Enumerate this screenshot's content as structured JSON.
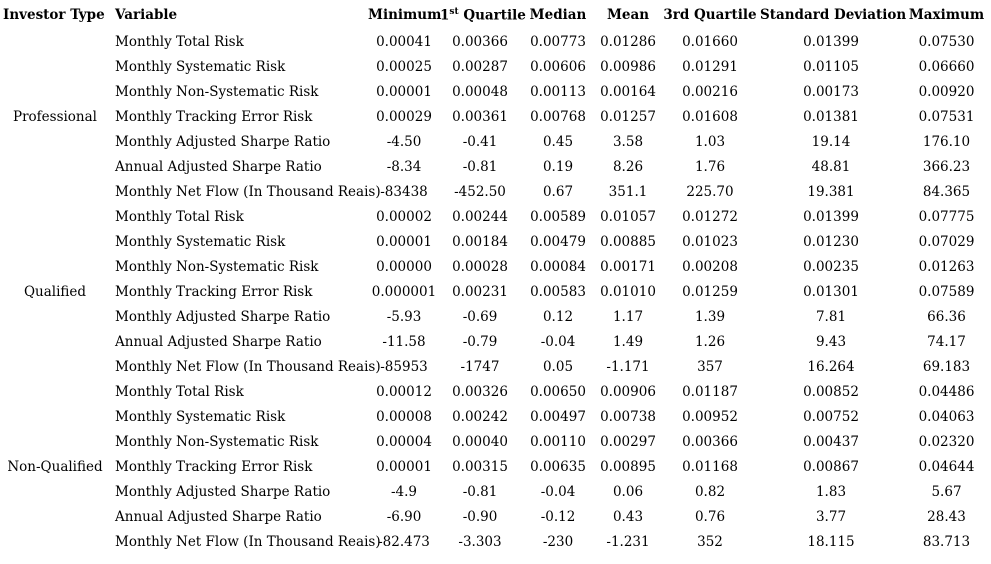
{
  "table": {
    "headers": {
      "investor_type": "Investor Type",
      "variable": "Variable",
      "minimum": "Minimum",
      "q1_base": "1",
      "q1_sup": "st",
      "q1_rest": " Quartile",
      "median": "Median",
      "mean": "Mean",
      "q3": "3rd Quartile",
      "std_dev": "Standard Deviation",
      "maximum": "Maximum"
    },
    "groups": [
      {
        "investor_type": "Professional",
        "rows": [
          {
            "variable": "Monthly Total Risk",
            "values": [
              "0.00041",
              "0.00366",
              "0.00773",
              "0.01286",
              "0.01660",
              "0.01399",
              "0.07530"
            ]
          },
          {
            "variable": "Monthly Systematic Risk",
            "values": [
              "0.00025",
              "0.00287",
              "0.00606",
              "0.00986",
              "0.01291",
              "0.01105",
              "0.06660"
            ]
          },
          {
            "variable": "Monthly Non-Systematic Risk",
            "values": [
              "0.00001",
              "0.00048",
              "0.00113",
              "0.00164",
              "0.00216",
              "0.00173",
              "0.00920"
            ]
          },
          {
            "variable": "Monthly Tracking Error Risk",
            "values": [
              "0.00029",
              "0.00361",
              "0.00768",
              "0.01257",
              "0.01608",
              "0.01381",
              "0.07531"
            ]
          },
          {
            "variable": "Monthly Adjusted Sharpe Ratio",
            "values": [
              "-4.50",
              "-0.41",
              "0.45",
              "3.58",
              "1.03",
              "19.14",
              "176.10"
            ]
          },
          {
            "variable": "Annual Adjusted Sharpe Ratio",
            "values": [
              "-8.34",
              "-0.81",
              "0.19",
              "8.26",
              "1.76",
              "48.81",
              "366.23"
            ]
          },
          {
            "variable": "Monthly Net Flow (In Thousand Reais)",
            "values": [
              "-83438",
              "-452.50",
              "0.67",
              "351.1",
              "225.70",
              "19.381",
              "84.365"
            ]
          }
        ]
      },
      {
        "investor_type": "Qualified",
        "rows": [
          {
            "variable": "Monthly Total Risk",
            "values": [
              "0.00002",
              "0.00244",
              "0.00589",
              "0.01057",
              "0.01272",
              "0.01399",
              "0.07775"
            ]
          },
          {
            "variable": "Monthly Systematic Risk",
            "values": [
              "0.00001",
              "0.00184",
              "0.00479",
              "0.00885",
              "0.01023",
              "0.01230",
              "0.07029"
            ]
          },
          {
            "variable": "Monthly Non-Systematic Risk",
            "values": [
              "0.00000",
              "0.00028",
              "0.00084",
              "0.00171",
              "0.00208",
              "0.00235",
              "0.01263"
            ]
          },
          {
            "variable": "Monthly Tracking Error Risk",
            "values": [
              "0.000001",
              "0.00231",
              "0.00583",
              "0.01010",
              "0.01259",
              "0.01301",
              "0.07589"
            ]
          },
          {
            "variable": "Monthly Adjusted Sharpe Ratio",
            "values": [
              "-5.93",
              "-0.69",
              "0.12",
              "1.17",
              "1.39",
              "7.81",
              "66.36"
            ]
          },
          {
            "variable": "Annual Adjusted Sharpe Ratio",
            "values": [
              "-11.58",
              "-0.79",
              "-0.04",
              "1.49",
              "1.26",
              "9.43",
              "74.17"
            ]
          },
          {
            "variable": "Monthly Net Flow (In Thousand Reais)",
            "values": [
              "-85953",
              "-1747",
              "0.05",
              "-1.171",
              "357",
              "16.264",
              "69.183"
            ]
          }
        ]
      },
      {
        "investor_type": "Non-Qualified",
        "rows": [
          {
            "variable": "Monthly Total Risk",
            "values": [
              "0.00012",
              "0.00326",
              "0.00650",
              "0.00906",
              "0.01187",
              "0.00852",
              "0.04486"
            ]
          },
          {
            "variable": "Monthly Systematic Risk",
            "values": [
              "0.00008",
              "0.00242",
              "0.00497",
              "0.00738",
              "0.00952",
              "0.00752",
              "0.04063"
            ]
          },
          {
            "variable": "Monthly Non-Systematic Risk",
            "values": [
              "0.00004",
              "0.00040",
              "0.00110",
              "0.00297",
              "0.00366",
              "0.00437",
              "0.02320"
            ]
          },
          {
            "variable": "Monthly Tracking Error Risk",
            "values": [
              "0.00001",
              "0.00315",
              "0.00635",
              "0.00895",
              "0.01168",
              "0.00867",
              "0.04644"
            ]
          },
          {
            "variable": "Monthly Adjusted Sharpe Ratio",
            "values": [
              "-4.9",
              "-0.81",
              "-0.04",
              "0.06",
              "0.82",
              "1.83",
              "5.67"
            ]
          },
          {
            "variable": "Annual Adjusted Sharpe Ratio",
            "values": [
              "-6.90",
              "-0.90",
              "-0.12",
              "0.43",
              "0.76",
              "3.77",
              "28.43"
            ]
          },
          {
            "variable": "Monthly Net Flow (In Thousand Reais)",
            "values": [
              "-82.473",
              "-3.303",
              "-230",
              "-1.231",
              "352",
              "18.115",
              "83.713"
            ]
          }
        ]
      }
    ]
  }
}
